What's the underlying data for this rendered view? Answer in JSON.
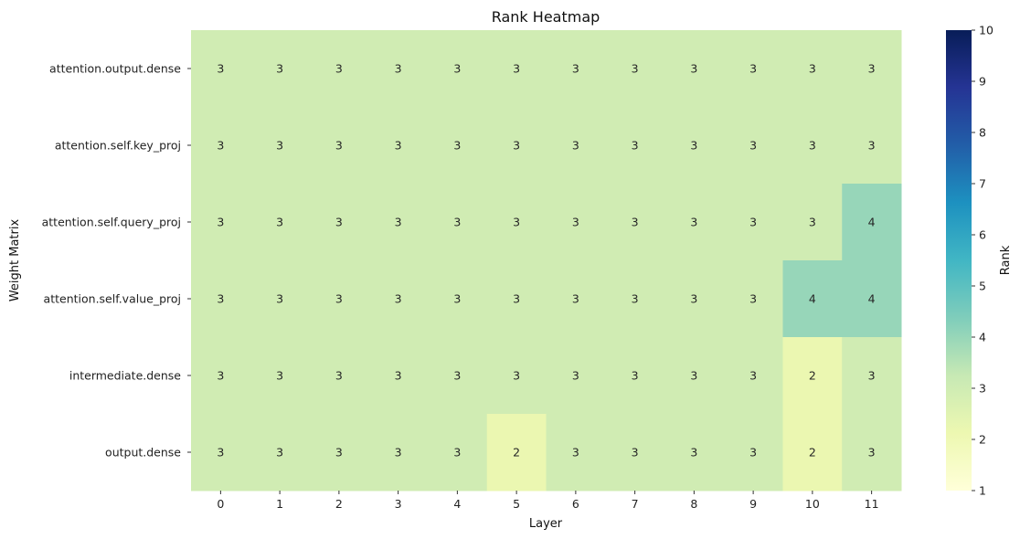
{
  "chart_data": {
    "type": "heatmap",
    "title": "Rank Heatmap",
    "xlabel": "Layer",
    "ylabel": "Weight Matrix",
    "x": [
      "0",
      "1",
      "2",
      "3",
      "4",
      "5",
      "6",
      "7",
      "8",
      "9",
      "10",
      "11"
    ],
    "y": [
      "attention.output.dense",
      "attention.self.key_proj",
      "attention.self.query_proj",
      "attention.self.value_proj",
      "intermediate.dense",
      "output.dense"
    ],
    "values": [
      [
        3,
        3,
        3,
        3,
        3,
        3,
        3,
        3,
        3,
        3,
        3,
        3
      ],
      [
        3,
        3,
        3,
        3,
        3,
        3,
        3,
        3,
        3,
        3,
        3,
        3
      ],
      [
        3,
        3,
        3,
        3,
        3,
        3,
        3,
        3,
        3,
        3,
        3,
        4
      ],
      [
        3,
        3,
        3,
        3,
        3,
        3,
        3,
        3,
        3,
        3,
        4,
        4
      ],
      [
        3,
        3,
        3,
        3,
        3,
        3,
        3,
        3,
        3,
        3,
        2,
        3
      ],
      [
        3,
        3,
        3,
        3,
        3,
        2,
        3,
        3,
        3,
        3,
        2,
        3
      ]
    ],
    "annotations": true,
    "colorbar": {
      "label": "Rank",
      "range": [
        1,
        10
      ],
      "ticks": [
        "1",
        "2",
        "3",
        "4",
        "5",
        "6",
        "7",
        "8",
        "9",
        "10"
      ],
      "colormap": "YlGnBu"
    },
    "colors": {
      "rank_1": "#ffffd9",
      "rank_2": "#ebf7b1",
      "rank_3": "#d0ecb3",
      "rank_4": "#97d6b9",
      "rank_10": "#081d58"
    }
  }
}
